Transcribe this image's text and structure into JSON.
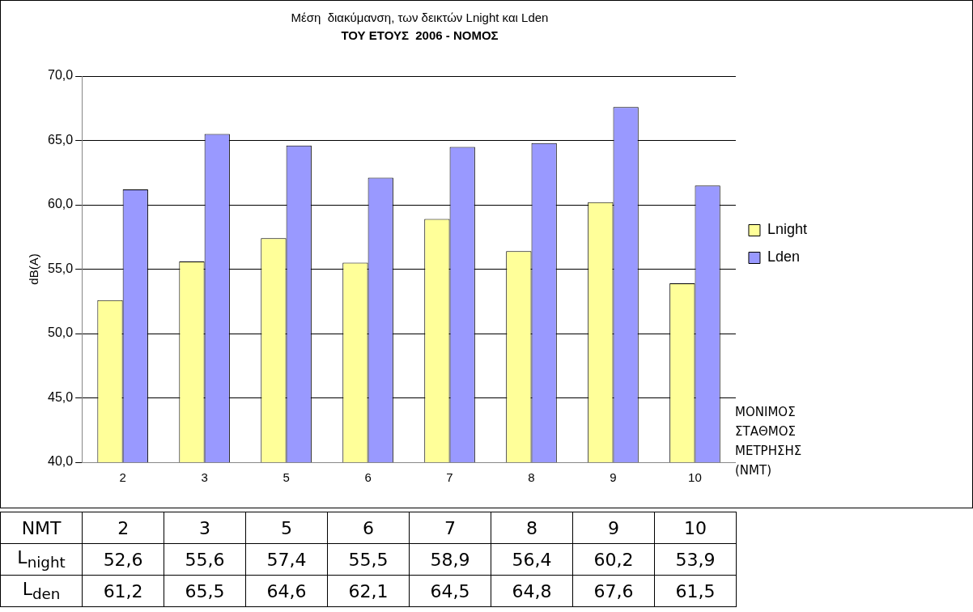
{
  "chart_data": {
    "type": "bar",
    "title": "Μέση  διακύμανση, των δεικτών Lnight και Lden",
    "subtitle": "ΤΟΥ ΕΤΟΥΣ  2006 - ΝΟΜΟΣ",
    "ylabel": "dB(A)",
    "xlabel": "ΜΟΝΙΜΟΣ ΣΤΑΘΜΟΣ ΜΕΤΡΗΣΗΣ (NMT)",
    "categories": [
      "2",
      "3",
      "5",
      "6",
      "7",
      "8",
      "9",
      "10"
    ],
    "series": [
      {
        "name": "Lnight",
        "color": "#ffff99",
        "values": [
          52.6,
          55.6,
          57.4,
          55.5,
          58.9,
          56.4,
          60.2,
          53.9
        ],
        "value_labels": [
          "52,6",
          "55,6",
          "57,4",
          "55,5",
          "58,9",
          "56,4",
          "60,2",
          "53,9"
        ]
      },
      {
        "name": "Lden",
        "color": "#9999ff",
        "values": [
          61.2,
          65.5,
          64.6,
          62.1,
          64.5,
          64.8,
          67.6,
          61.5
        ],
        "value_labels": [
          "61,2",
          "65,5",
          "64,6",
          "62,1",
          "64,5",
          "64,8",
          "67,6",
          "61,5"
        ]
      }
    ],
    "ylim": [
      40,
      70
    ],
    "yticks": [
      {
        "value": 40,
        "label": "40,0"
      },
      {
        "value": 45,
        "label": "45,0"
      },
      {
        "value": 50,
        "label": "50,0"
      },
      {
        "value": 55,
        "label": "55,0"
      },
      {
        "value": 60,
        "label": "60,0"
      },
      {
        "value": 65,
        "label": "65,0"
      },
      {
        "value": 70,
        "label": "70,0"
      }
    ],
    "grid": "y",
    "legend": "right",
    "annotations": [
      "NMT",
      "L$_{night}$",
      "L$_{den}$"
    ]
  }
}
